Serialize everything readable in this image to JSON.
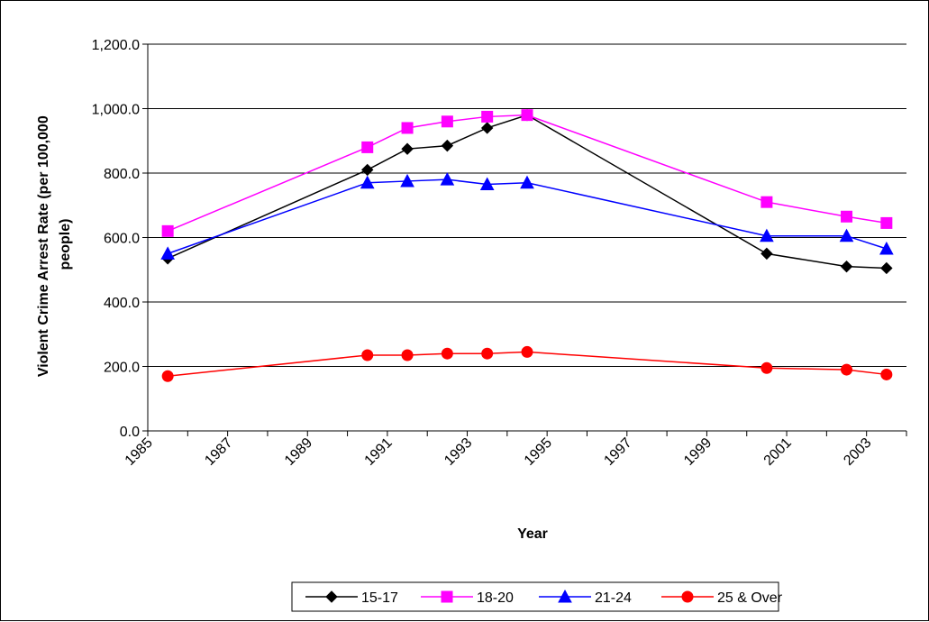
{
  "chart_data": {
    "type": "line",
    "title": "",
    "xlabel": "Year",
    "ylabel": "Violent Crime Arrest Rate (per 100,000 people)",
    "ylabel_lines": [
      "Violent Crime Arrest Rate (per 100,000",
      "people)"
    ],
    "xlim": [
      1985,
      2004
    ],
    "ylim": [
      0,
      1200
    ],
    "x_ticks": [
      1985,
      1987,
      1989,
      1991,
      1993,
      1995,
      1997,
      1999,
      2001,
      2003
    ],
    "x_tick_labels": [
      "1985",
      "1987",
      "1989",
      "1991",
      "1993",
      "1995",
      "1997",
      "1999",
      "2001",
      "2003"
    ],
    "y_ticks": [
      0,
      200,
      400,
      600,
      800,
      1000,
      1200
    ],
    "y_tick_labels": [
      "0.0",
      "200.0",
      "400.0",
      "600.0",
      "800.0",
      "1,000.0",
      "1,200.0"
    ],
    "grid": true,
    "legend_position": "bottom",
    "x": [
      1985.5,
      1990.5,
      1991.5,
      1992.5,
      1993.5,
      1994.5,
      2000.5,
      2002.5,
      2003.5
    ],
    "series": [
      {
        "name": "15-17",
        "color": "#000000",
        "marker": "diamond",
        "values": [
          535,
          810,
          875,
          885,
          940,
          980,
          550,
          510,
          505
        ]
      },
      {
        "name": "18-20",
        "color": "#ff00ff",
        "marker": "square",
        "values": [
          620,
          880,
          940,
          960,
          975,
          980,
          710,
          665,
          645
        ]
      },
      {
        "name": "21-24",
        "color": "#0000ff",
        "marker": "triangle",
        "values": [
          550,
          770,
          775,
          780,
          765,
          770,
          605,
          605,
          565
        ]
      },
      {
        "name": "25 & Over",
        "color": "#ff0000",
        "marker": "circle",
        "values": [
          170,
          235,
          235,
          240,
          240,
          245,
          195,
          190,
          175
        ]
      }
    ]
  }
}
